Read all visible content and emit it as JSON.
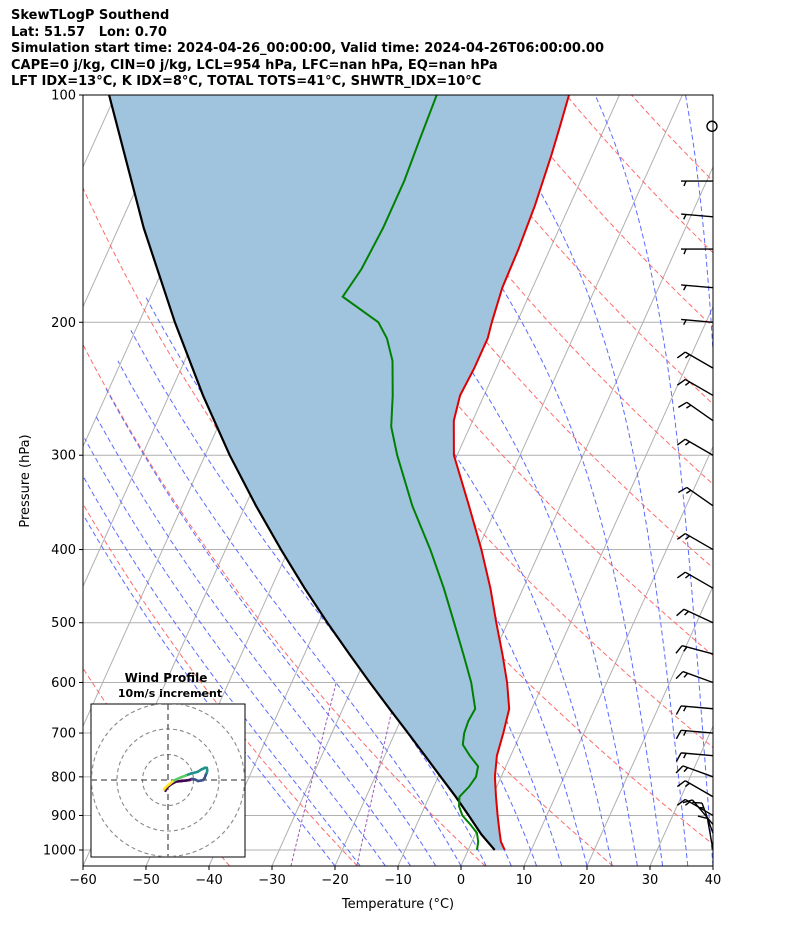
{
  "header": {
    "lines": [
      "SkewTLogP Southend",
      "Lat: 51.57   Lon: 0.70",
      "Simulation start time: 2024-04-26_00:00:00, Valid time: 2024-04-26T06:00:00.00",
      "CAPE=0 j/kg, CIN=0 j/kg, LCL=954 hPa, LFC=nan hPa, EQ=nan hPa",
      "LFT IDX=13$^\\circ$C, K IDX=8$^\\circ$C, TOTAL TOTS=41$^\\circ$C, SHWTR_IDX=10$^\\circ$C"
    ]
  },
  "chart_data": {
    "type": "skewt",
    "xlabel": "Temperature ($^\\circ$C)",
    "ylabel": "Pressure (hPa)",
    "xlim": [
      -60,
      40
    ],
    "ylim": [
      1050,
      100
    ],
    "x_ticks": [
      -60,
      -50,
      -40,
      -30,
      -20,
      -10,
      0,
      10,
      20,
      30,
      40
    ],
    "y_ticks": [
      1000,
      900,
      800,
      700,
      600,
      500,
      400,
      300,
      200,
      100
    ],
    "log_pressure_axis": true,
    "skew_deg_per_decade": 54,
    "colors": {
      "temperature": "#e00000",
      "dewpoint": "#008000",
      "parcel": "#000000",
      "cape_fill": "#a1c4de",
      "dry_adiabats": "#ff6b6b",
      "moist_adiabats": "#5b6bff",
      "isotherms": "#b0b0b0",
      "mixing_ratio": "#9b59b6"
    },
    "series": [
      {
        "name": "Temperature",
        "points": [
          [
            1000,
            5.8
          ],
          [
            975,
            4.6
          ],
          [
            950,
            3.8
          ],
          [
            900,
            2.2
          ],
          [
            850,
            0.6
          ],
          [
            800,
            -1.0
          ],
          [
            750,
            -2.2
          ],
          [
            700,
            -2.8
          ],
          [
            650,
            -3.6
          ],
          [
            600,
            -5.8
          ],
          [
            550,
            -8.6
          ],
          [
            500,
            -11.8
          ],
          [
            450,
            -15.2
          ],
          [
            400,
            -19.4
          ],
          [
            350,
            -24.5
          ],
          [
            300,
            -30.5
          ],
          [
            270,
            -33.0
          ],
          [
            250,
            -33.8
          ],
          [
            230,
            -33.5
          ],
          [
            210,
            -33.5
          ],
          [
            200,
            -34.0
          ],
          [
            180,
            -34.8
          ],
          [
            160,
            -35.0
          ],
          [
            140,
            -35.5
          ],
          [
            120,
            -36.5
          ],
          [
            110,
            -37.2
          ],
          [
            100,
            -38.0
          ]
        ]
      },
      {
        "name": "Dewpoint",
        "points": [
          [
            1000,
            1.4
          ],
          [
            975,
            1.0
          ],
          [
            950,
            0.2
          ],
          [
            925,
            -1.5
          ],
          [
            900,
            -3.4
          ],
          [
            875,
            -4.6
          ],
          [
            850,
            -5.2
          ],
          [
            825,
            -4.4
          ],
          [
            800,
            -4.0
          ],
          [
            775,
            -4.4
          ],
          [
            750,
            -6.5
          ],
          [
            725,
            -8.4
          ],
          [
            700,
            -9.0
          ],
          [
            675,
            -9.2
          ],
          [
            650,
            -9.0
          ],
          [
            600,
            -11.5
          ],
          [
            550,
            -14.8
          ],
          [
            500,
            -18.5
          ],
          [
            450,
            -22.6
          ],
          [
            400,
            -27.5
          ],
          [
            350,
            -33.5
          ],
          [
            300,
            -39.5
          ],
          [
            275,
            -42.5
          ],
          [
            250,
            -44.5
          ],
          [
            225,
            -47.0
          ],
          [
            210,
            -49.5
          ],
          [
            200,
            -52.0
          ],
          [
            185,
            -59.5
          ],
          [
            170,
            -58.5
          ],
          [
            150,
            -58.0
          ],
          [
            130,
            -58.0
          ],
          [
            115,
            -58.5
          ],
          [
            100,
            -59.0
          ]
        ]
      },
      {
        "name": "Parcel",
        "points": [
          [
            1000,
            4.2
          ],
          [
            954,
            1.0
          ],
          [
            900,
            -2.4
          ],
          [
            850,
            -5.8
          ],
          [
            800,
            -9.6
          ],
          [
            750,
            -13.6
          ],
          [
            700,
            -17.9
          ],
          [
            650,
            -22.6
          ],
          [
            600,
            -27.6
          ],
          [
            550,
            -32.9
          ],
          [
            500,
            -38.6
          ],
          [
            450,
            -44.7
          ],
          [
            400,
            -51.2
          ],
          [
            350,
            -58.3
          ],
          [
            300,
            -66.1
          ],
          [
            250,
            -74.6
          ],
          [
            200,
            -84.3
          ],
          [
            150,
            -96.0
          ],
          [
            100,
            -111.0
          ]
        ]
      }
    ],
    "wind_barbs": [
      {
        "p": 1000,
        "speed_kt": 10,
        "dir_deg": 350
      },
      {
        "p": 950,
        "speed_kt": 15,
        "dir_deg": 340
      },
      {
        "p": 925,
        "speed_kt": 10,
        "dir_deg": 320
      },
      {
        "p": 900,
        "speed_kt": 15,
        "dir_deg": 300
      },
      {
        "p": 850,
        "speed_kt": 15,
        "dir_deg": 300
      },
      {
        "p": 800,
        "speed_kt": 15,
        "dir_deg": 290
      },
      {
        "p": 750,
        "speed_kt": 15,
        "dir_deg": 275
      },
      {
        "p": 700,
        "speed_kt": 15,
        "dir_deg": 275
      },
      {
        "p": 650,
        "speed_kt": 15,
        "dir_deg": 275
      },
      {
        "p": 600,
        "speed_kt": 15,
        "dir_deg": 290
      },
      {
        "p": 550,
        "speed_kt": 15,
        "dir_deg": 285
      },
      {
        "p": 500,
        "speed_kt": 15,
        "dir_deg": 295
      },
      {
        "p": 450,
        "speed_kt": 15,
        "dir_deg": 300
      },
      {
        "p": 400,
        "speed_kt": 15,
        "dir_deg": 300
      },
      {
        "p": 350,
        "speed_kt": 15,
        "dir_deg": 305
      },
      {
        "p": 300,
        "speed_kt": 15,
        "dir_deg": 300
      },
      {
        "p": 270,
        "speed_kt": 15,
        "dir_deg": 305
      },
      {
        "p": 250,
        "speed_kt": 15,
        "dir_deg": 300
      },
      {
        "p": 230,
        "speed_kt": 15,
        "dir_deg": 300
      },
      {
        "p": 200,
        "speed_kt": 5,
        "dir_deg": 275
      },
      {
        "p": 180,
        "speed_kt": 5,
        "dir_deg": 275
      },
      {
        "p": 160,
        "speed_kt": 5,
        "dir_deg": 270
      },
      {
        "p": 145,
        "speed_kt": 5,
        "dir_deg": 275
      },
      {
        "p": 130,
        "speed_kt": 5,
        "dir_deg": 270
      },
      {
        "p": 110,
        "speed_kt": 0,
        "dir_deg": 0
      }
    ],
    "inset": {
      "title": "Wind Profile",
      "subtitle": "10m/s increment",
      "u": [
        -0.5,
        -0.2,
        0.4,
        1.0,
        1.6,
        2.6,
        3.6,
        4.2,
        4.7,
        5.3,
        5.9,
        6.5,
        6.9,
        7.2,
        7.4,
        7.6,
        7.7,
        7.6,
        7.2,
        6.9,
        6.6,
        5.8,
        4.6,
        3.5,
        2.5,
        1.6,
        0.9,
        0.3,
        -0.2,
        -0.6,
        -0.8
      ],
      "v": [
        -2.1,
        -1.5,
        -1.0,
        -0.6,
        -0.3,
        -0.2,
        -0.1,
        0.0,
        0.2,
        0.1,
        -0.2,
        -0.1,
        0.0,
        0.4,
        1.0,
        1.4,
        1.9,
        2.4,
        2.4,
        2.2,
        2.1,
        1.6,
        1.3,
        0.9,
        0.5,
        0.1,
        -0.3,
        -0.8,
        -1.2,
        -1.6,
        -1.9
      ]
    }
  }
}
